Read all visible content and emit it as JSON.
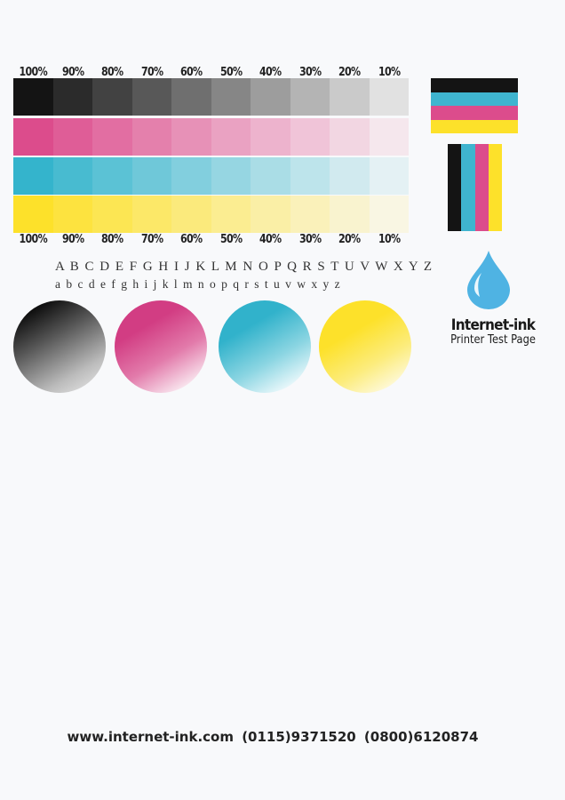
{
  "percent_labels": [
    "100%",
    "90%",
    "80%",
    "70%",
    "60%",
    "50%",
    "40%",
    "30%",
    "20%",
    "10%"
  ],
  "levels": [
    1.0,
    0.9,
    0.8,
    0.7,
    0.6,
    0.5,
    0.4,
    0.3,
    0.2,
    0.1
  ],
  "colors": {
    "black": "#141414",
    "magenta": "#dc4c8c",
    "cyan": "#34b4cc",
    "yellow": "#fde12a",
    "drop": "#4fb3e3"
  },
  "alphabet": {
    "upper": "A B C D E F G H I J K L M N O P Q R S T U V W X Y Z",
    "lower": "a b c d e f g h i j k l m n o p q r s t u v w x y z"
  },
  "brand": {
    "name": "Internet-ink",
    "subtitle": "Printer Test Page"
  },
  "footer": "www.internet-ink.com  (0115)9371520  (0800)6120874"
}
